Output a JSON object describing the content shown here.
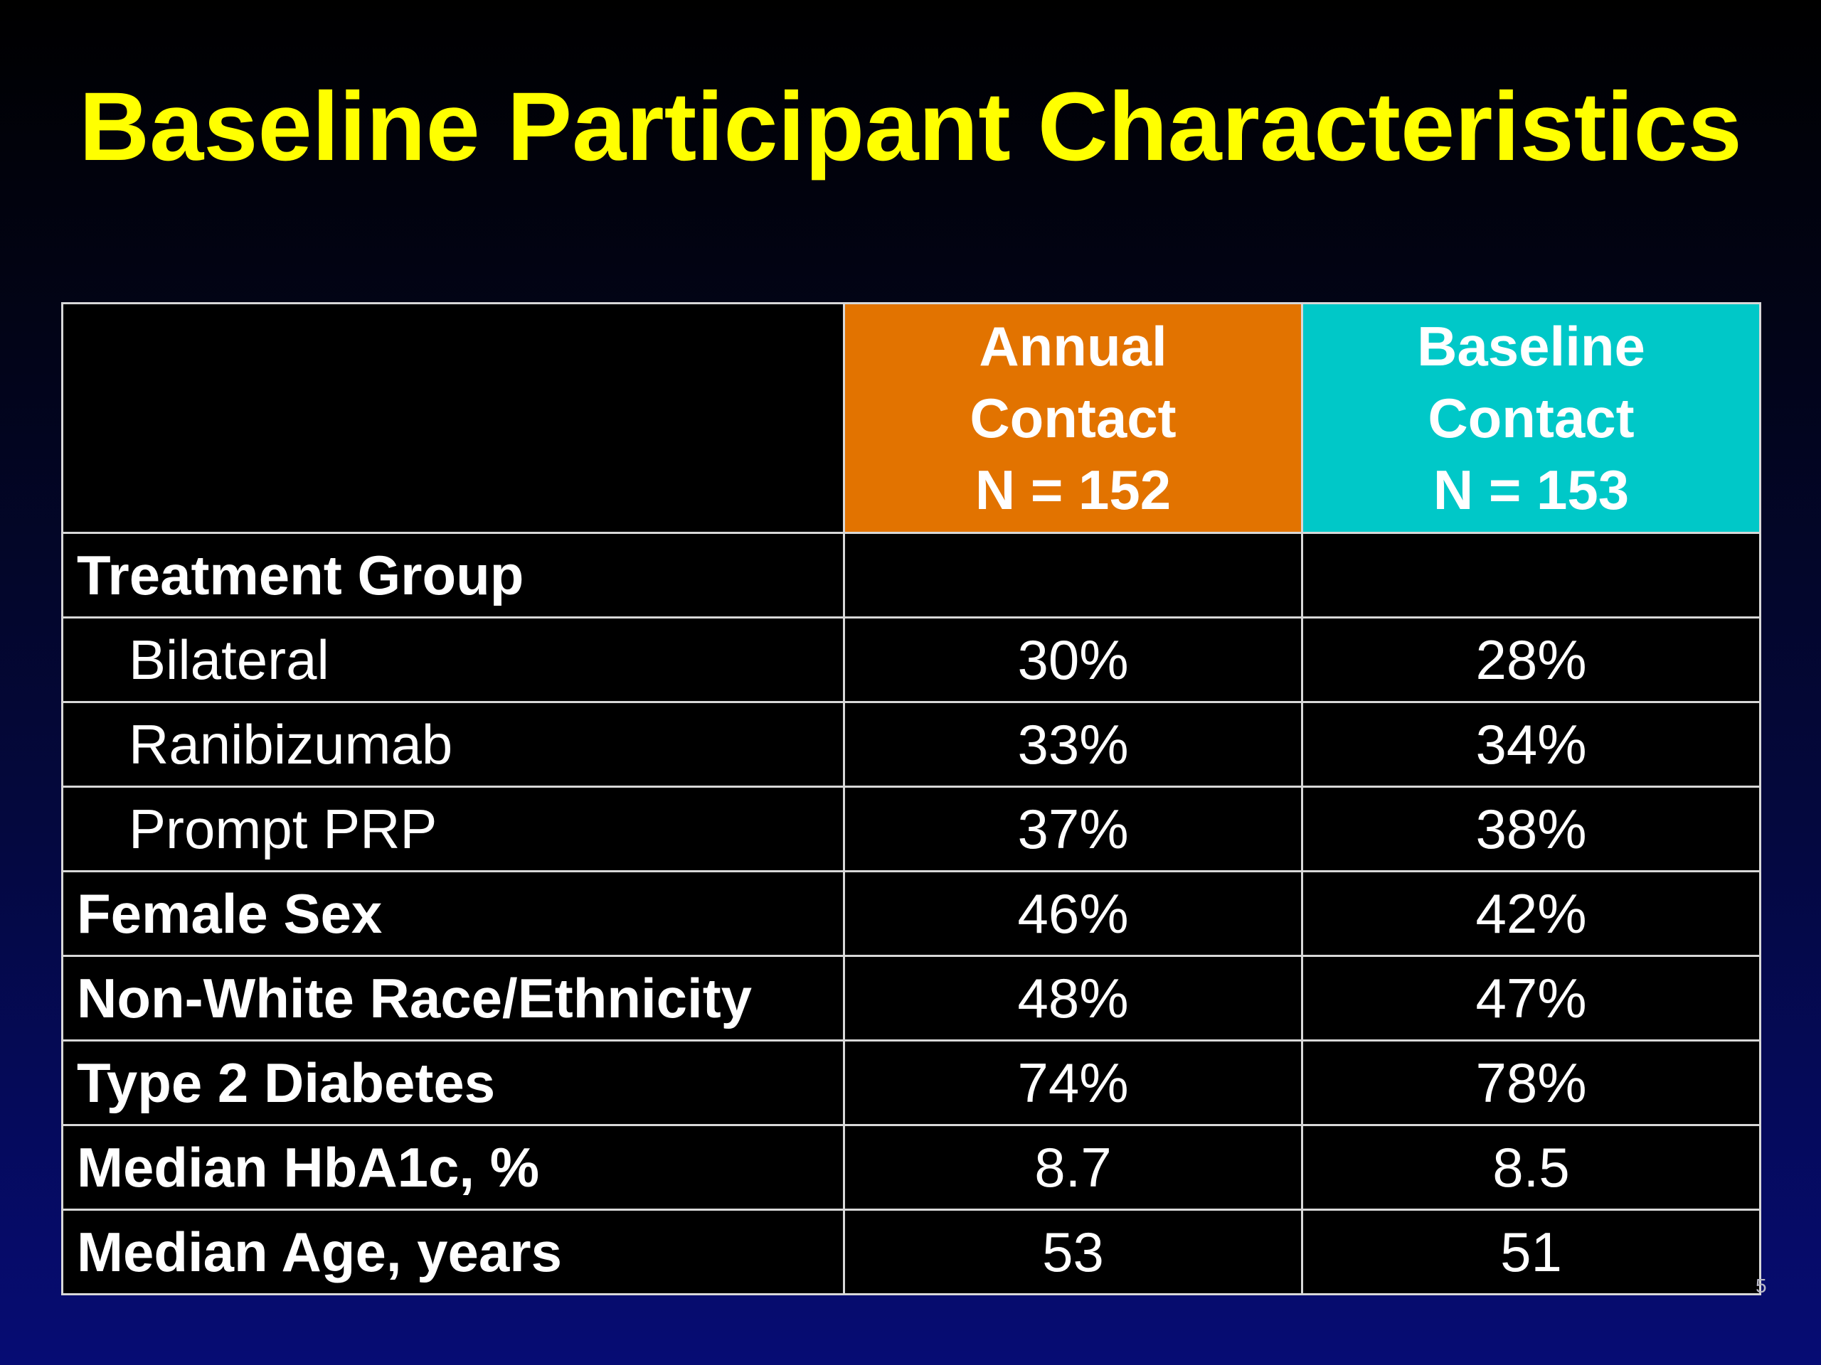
{
  "slide": {
    "title": "Baseline Participant Characteristics",
    "page_number": "5"
  },
  "table": {
    "columns": [
      {
        "lines": [
          "Annual",
          "Contact",
          "N = 152"
        ],
        "color": "#e27300"
      },
      {
        "lines": [
          "Baseline",
          "Contact",
          "N = 153"
        ],
        "color": "#00c8c8"
      }
    ],
    "rows": [
      {
        "label": "Treatment Group",
        "style": "bold",
        "annual": "",
        "baseline": ""
      },
      {
        "label": "Bilateral",
        "style": "indent",
        "annual": "30%",
        "baseline": "28%"
      },
      {
        "label": "Ranibizumab",
        "style": "indent",
        "annual": "33%",
        "baseline": "34%"
      },
      {
        "label": "Prompt PRP",
        "style": "indent",
        "annual": "37%",
        "baseline": "38%"
      },
      {
        "label": "Female Sex",
        "style": "bold",
        "annual": "46%",
        "baseline": "42%"
      },
      {
        "label": "Non-White Race/Ethnicity",
        "style": "bold",
        "annual": "48%",
        "baseline": "47%"
      },
      {
        "label": "Type 2 Diabetes",
        "style": "bold",
        "annual": "74%",
        "baseline": "78%"
      },
      {
        "label": "Median HbA1c, %",
        "style": "bold",
        "annual": "8.7",
        "baseline": "8.5"
      },
      {
        "label": "Median Age, years",
        "style": "bold",
        "annual": "53",
        "baseline": "51"
      }
    ]
  }
}
